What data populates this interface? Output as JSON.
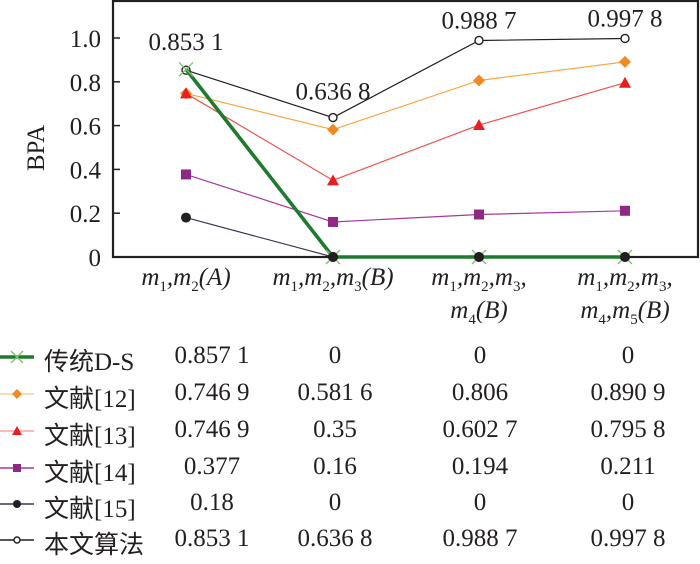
{
  "chart_data": {
    "type": "line",
    "title": "",
    "xlabel": "",
    "ylabel": "BPA",
    "ylim": [
      0,
      1.15
    ],
    "yticks": [
      "0",
      "0.2",
      "0.4",
      "0.6",
      "0.8",
      "1.0"
    ],
    "ytick_values": [
      0,
      0.2,
      0.4,
      0.6,
      0.8,
      1.0
    ],
    "categories": [
      {
        "parts": [
          [
            "m",
            "1"
          ],
          [
            ",",
            ""
          ],
          [
            "m",
            "2"
          ],
          [
            "(A)",
            ""
          ]
        ],
        "line2": null
      },
      {
        "parts": [
          [
            "m",
            "1"
          ],
          [
            ",",
            ""
          ],
          [
            "m",
            "2"
          ],
          [
            ",",
            ""
          ],
          [
            "m",
            "3"
          ],
          [
            "(B)",
            ""
          ]
        ],
        "line2": null
      },
      {
        "parts": [
          [
            "m",
            "1"
          ],
          [
            ",",
            ""
          ],
          [
            "m",
            "2"
          ],
          [
            ",",
            ""
          ],
          [
            "m",
            "3"
          ],
          [
            ",",
            ""
          ]
        ],
        "line2": [
          [
            "m",
            "4"
          ],
          [
            "(B)",
            ""
          ]
        ]
      },
      {
        "parts": [
          [
            "m",
            "1"
          ],
          [
            ",",
            ""
          ],
          [
            "m",
            "2"
          ],
          [
            ",",
            ""
          ],
          [
            "m",
            "3"
          ],
          [
            ",",
            ""
          ]
        ],
        "line2": [
          [
            "m",
            "4"
          ],
          [
            ",",
            ""
          ],
          [
            "m",
            "5"
          ],
          [
            "(B)",
            ""
          ]
        ]
      }
    ],
    "category_labels": [
      "m1,m2(A)",
      "m1,m2,m3(B)",
      "m1,m2,m3,m4(B)",
      "m1,m2,m3,m4,m5(B)"
    ],
    "grid": false,
    "legend_placement": "bottom-table",
    "series": [
      {
        "name": "传统D-S",
        "values": [
          0.8571,
          0,
          0,
          0
        ],
        "labels": [
          "0.857 1",
          "0",
          "0",
          "0"
        ],
        "color": "#1e7a2e",
        "marker": "x",
        "marker_color": "#7dc26b"
      },
      {
        "name": "文献[12]",
        "values": [
          0.7469,
          0.5816,
          0.806,
          0.8909
        ],
        "labels": [
          "0.746 9",
          "0.581 6",
          "0.806",
          "0.890 9"
        ],
        "color": "#f7a841",
        "marker": "diamond",
        "marker_color": "#f08a24"
      },
      {
        "name": "文献[13]",
        "values": [
          0.7469,
          0.35,
          0.6027,
          0.7958
        ],
        "labels": [
          "0.746 9",
          "0.35",
          "0.602 7",
          "0.795 8"
        ],
        "color": "#ef5350",
        "marker": "triangle",
        "marker_color": "#e62020"
      },
      {
        "name": "文献[14]",
        "values": [
          0.377,
          0.16,
          0.194,
          0.211
        ],
        "labels": [
          "0.377",
          "0.16",
          "0.194",
          "0.211"
        ],
        "color": "#a8389c",
        "marker": "square",
        "marker_color": "#8e2a86"
      },
      {
        "name": "文献[15]",
        "values": [
          0.18,
          0,
          0,
          0
        ],
        "labels": [
          "0.18",
          "0",
          "0",
          "0"
        ],
        "color": "#3b3550",
        "marker": "circle",
        "marker_color": "#231f20"
      },
      {
        "name": "本文算法",
        "values": [
          0.8531,
          0.6368,
          0.9887,
          0.9978
        ],
        "labels": [
          "0.853 1",
          "0.636 8",
          "0.988 7",
          "0.997 8"
        ],
        "color": "#231f20",
        "marker": "open-circle",
        "marker_color": "#231f20"
      }
    ],
    "annotations": [
      {
        "series": "本文算法",
        "index": 0,
        "text": "0.853 1"
      },
      {
        "series": "本文算法",
        "index": 1,
        "text": "0.636 8"
      },
      {
        "series": "本文算法",
        "index": 2,
        "text": "0.988 7"
      },
      {
        "series": "本文算法",
        "index": 3,
        "text": "0.997 8"
      }
    ]
  }
}
